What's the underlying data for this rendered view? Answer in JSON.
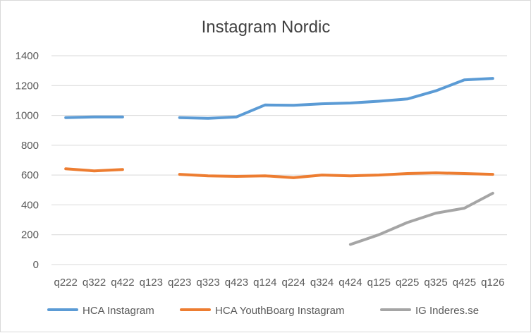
{
  "chart_data": {
    "type": "line",
    "title": "Instagram Nordic",
    "xlabel": "",
    "ylabel": "",
    "ylim": [
      0,
      1400
    ],
    "yticks": [
      "0",
      "200",
      "400",
      "600",
      "800",
      "1000",
      "1200",
      "1400"
    ],
    "grid": true,
    "legend_position": "bottom",
    "categories": [
      "q222",
      "q322",
      "q422",
      "q123",
      "q223",
      "q323",
      "q423",
      "q124",
      "q224",
      "q324",
      "q424",
      "q125",
      "q225",
      "q325",
      "q425",
      "q126"
    ],
    "series": [
      {
        "name": "HCA Instagram",
        "color": "#5b9bd5",
        "values": [
          985,
          990,
          990,
          null,
          985,
          980,
          990,
          1070,
          1068,
          1078,
          1083,
          1095,
          1110,
          1165,
          1238,
          1248
        ]
      },
      {
        "name": "HCA YouthBoarg Instagram",
        "color": "#ed7d31",
        "values": [
          642,
          628,
          637,
          null,
          605,
          595,
          591,
          595,
          582,
          600,
          595,
          600,
          610,
          615,
          610,
          605
        ]
      },
      {
        "name": "IG Inderes.se",
        "color": "#a5a5a5",
        "values": [
          null,
          null,
          null,
          null,
          null,
          null,
          null,
          null,
          null,
          null,
          135,
          200,
          282,
          345,
          378,
          478
        ]
      }
    ]
  }
}
